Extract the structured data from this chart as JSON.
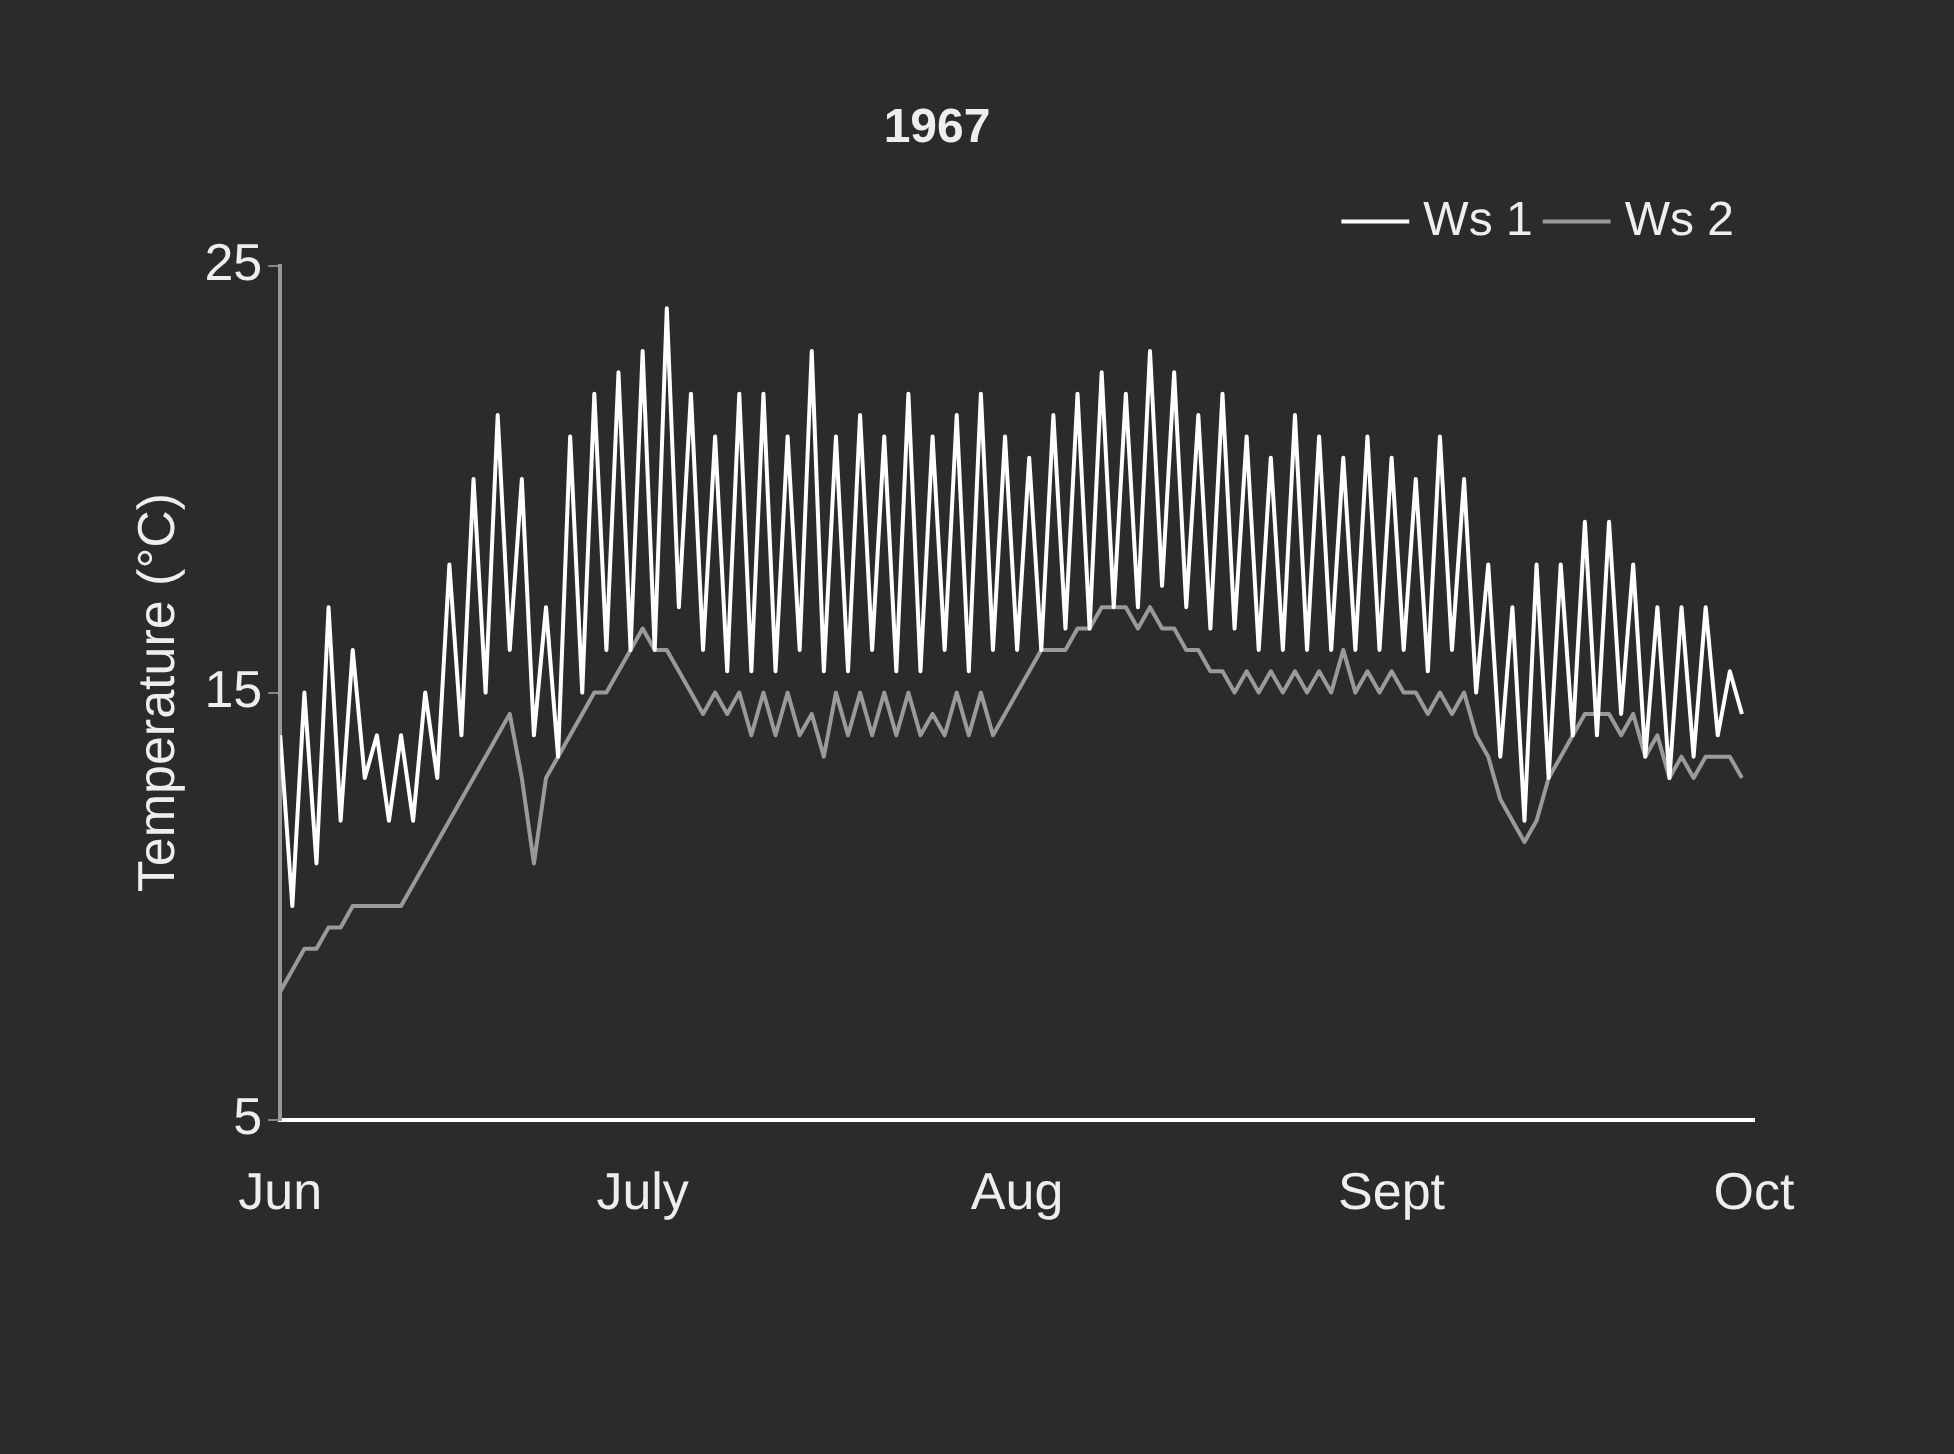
{
  "chart_data": {
    "type": "line",
    "title": "1967",
    "ylabel": "Temperature (°C)",
    "x": [
      "1967-06-01",
      "1967-06-02",
      "1967-06-03",
      "1967-06-04",
      "1967-06-05",
      "1967-06-06",
      "1967-06-07",
      "1967-06-08",
      "1967-06-09",
      "1967-06-10",
      "1967-06-11",
      "1967-06-12",
      "1967-06-13",
      "1967-06-14",
      "1967-06-15",
      "1967-06-16",
      "1967-06-17",
      "1967-06-18",
      "1967-06-19",
      "1967-06-20",
      "1967-06-21",
      "1967-06-22",
      "1967-06-23",
      "1967-06-24",
      "1967-06-25",
      "1967-06-26",
      "1967-06-27",
      "1967-06-28",
      "1967-06-29",
      "1967-06-30",
      "1967-07-01",
      "1967-07-02",
      "1967-07-03",
      "1967-07-04",
      "1967-07-05",
      "1967-07-06",
      "1967-07-07",
      "1967-07-08",
      "1967-07-09",
      "1967-07-10",
      "1967-07-11",
      "1967-07-12",
      "1967-07-13",
      "1967-07-14",
      "1967-07-15",
      "1967-07-16",
      "1967-07-17",
      "1967-07-18",
      "1967-07-19",
      "1967-07-20",
      "1967-07-21",
      "1967-07-22",
      "1967-07-23",
      "1967-07-24",
      "1967-07-25",
      "1967-07-26",
      "1967-07-27",
      "1967-07-28",
      "1967-07-29",
      "1967-07-30",
      "1967-07-31",
      "1967-08-01",
      "1967-08-02",
      "1967-08-03",
      "1967-08-04",
      "1967-08-05",
      "1967-08-06",
      "1967-08-07",
      "1967-08-08",
      "1967-08-09",
      "1967-08-10",
      "1967-08-11",
      "1967-08-12",
      "1967-08-13",
      "1967-08-14",
      "1967-08-15",
      "1967-08-16",
      "1967-08-17",
      "1967-08-18",
      "1967-08-19",
      "1967-08-20",
      "1967-08-21",
      "1967-08-22",
      "1967-08-23",
      "1967-08-24",
      "1967-08-25",
      "1967-08-26",
      "1967-08-27",
      "1967-08-28",
      "1967-08-29",
      "1967-08-30",
      "1967-08-31",
      "1967-09-01",
      "1967-09-02",
      "1967-09-03",
      "1967-09-04",
      "1967-09-05",
      "1967-09-06",
      "1967-09-07",
      "1967-09-08",
      "1967-09-09",
      "1967-09-10",
      "1967-09-11",
      "1967-09-12",
      "1967-09-13",
      "1967-09-14",
      "1967-09-15",
      "1967-09-16",
      "1967-09-17",
      "1967-09-18",
      "1967-09-19",
      "1967-09-20",
      "1967-09-21",
      "1967-09-22",
      "1967-09-23",
      "1967-09-24",
      "1967-09-25",
      "1967-09-26",
      "1967-09-27",
      "1967-09-28",
      "1967-09-29",
      "1967-09-30"
    ],
    "series": [
      {
        "name": "Ws 1",
        "color": "#ffffff",
        "values": [
          14,
          10,
          15,
          11,
          17,
          12,
          16,
          13,
          14,
          12,
          14,
          12,
          15,
          13,
          18,
          14,
          20,
          15,
          21.5,
          16,
          20,
          14,
          17,
          13.5,
          21,
          15,
          22,
          16,
          22.5,
          16,
          23,
          16,
          24,
          17,
          22,
          16,
          21,
          15.5,
          22,
          15.5,
          22,
          15.5,
          21,
          16,
          23,
          15.5,
          21,
          15.5,
          21.5,
          16,
          21,
          15.5,
          22,
          15.5,
          21,
          16,
          21.5,
          15.5,
          22,
          16,
          21,
          16,
          20.5,
          16,
          21.5,
          16.5,
          22,
          16.5,
          22.5,
          17,
          22,
          17,
          23,
          17.5,
          22.5,
          17,
          21.5,
          16.5,
          22,
          16.5,
          21,
          16,
          20.5,
          16,
          21.5,
          16,
          21,
          16,
          20.5,
          16,
          21,
          16,
          20.5,
          16,
          20,
          15.5,
          21,
          16,
          20,
          15,
          18,
          13.5,
          17,
          12,
          18,
          13,
          18,
          14,
          19,
          14,
          19,
          14.5,
          18,
          13.5,
          17,
          13,
          17,
          13.5,
          17,
          14,
          15.5,
          14.5
        ]
      },
      {
        "name": "Ws 2",
        "color": "#9a9a9a",
        "values": [
          8,
          8.5,
          9,
          9,
          9.5,
          9.5,
          10,
          10,
          10,
          10,
          10,
          10.5,
          11,
          11.5,
          12,
          12.5,
          13,
          13.5,
          14,
          14.5,
          13,
          11,
          13,
          13.5,
          14,
          14.5,
          15,
          15,
          15.5,
          16,
          16.5,
          16,
          16,
          15.5,
          15,
          14.5,
          15,
          14.5,
          15,
          14,
          15,
          14,
          15,
          14,
          14.5,
          13.5,
          15,
          14,
          15,
          14,
          15,
          14,
          15,
          14,
          14.5,
          14,
          15,
          14,
          15,
          14,
          14.5,
          15,
          15.5,
          16,
          16,
          16,
          16.5,
          16.5,
          17,
          17,
          17,
          16.5,
          17,
          16.5,
          16.5,
          16,
          16,
          15.5,
          15.5,
          15,
          15.5,
          15,
          15.5,
          15,
          15.5,
          15,
          15.5,
          15,
          16,
          15,
          15.5,
          15,
          15.5,
          15,
          15,
          14.5,
          15,
          14.5,
          15,
          14,
          13.5,
          12.5,
          12,
          11.5,
          12,
          13,
          13.5,
          14,
          14.5,
          14.5,
          14.5,
          14,
          14.5,
          13.5,
          14,
          13,
          13.5,
          13,
          13.5,
          13.5,
          13.5,
          13
        ]
      }
    ],
    "xlim": [
      "1967-06-01",
      "1967-10-01"
    ],
    "xticks": [
      {
        "value": "1967-06-01",
        "label": "Jun"
      },
      {
        "value": "1967-07-01",
        "label": "July"
      },
      {
        "value": "1967-08-01",
        "label": "Aug"
      },
      {
        "value": "1967-09-01",
        "label": "Sept"
      },
      {
        "value": "1967-10-01",
        "label": "Oct"
      }
    ],
    "ylim": [
      5,
      25
    ],
    "yticks": [
      5,
      15,
      25
    ],
    "grid": false,
    "legend": "top right",
    "marker": "none",
    "line_style": "solid"
  }
}
